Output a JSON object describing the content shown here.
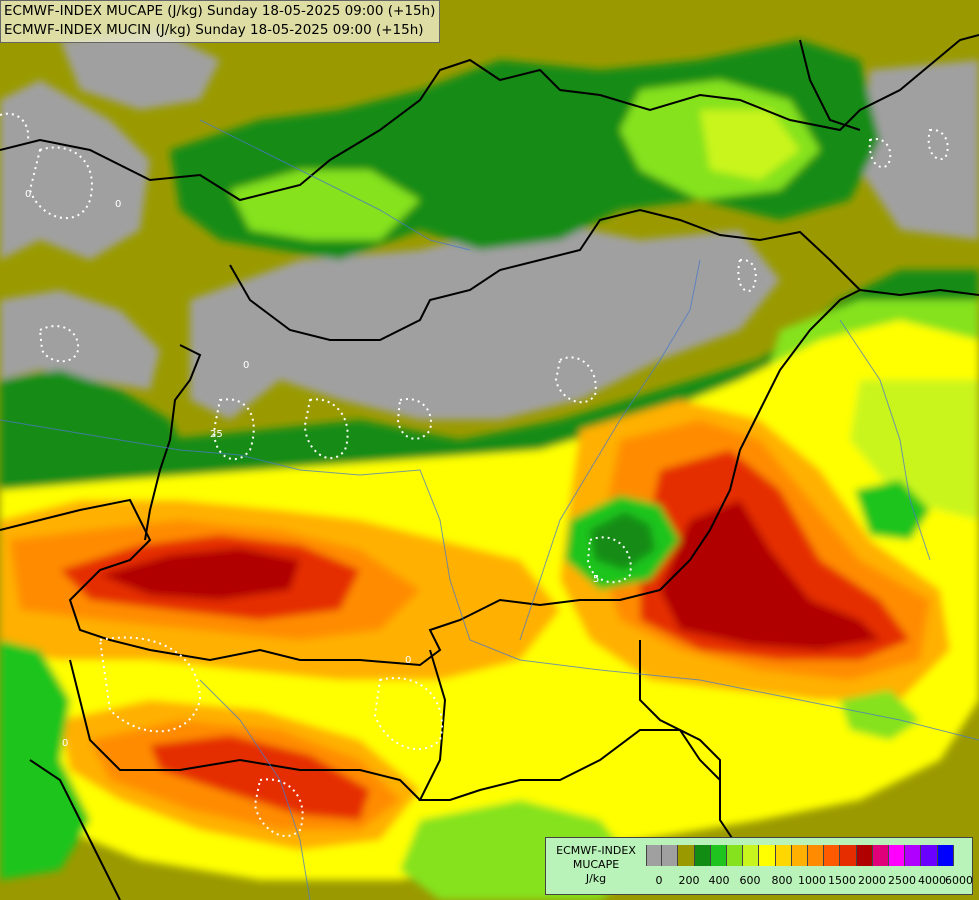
{
  "header": {
    "line1": "ECMWF-INDEX MUCAPE (J/kg) Sunday 18-05-2025 09:00 (+15h)",
    "line2": "ECMWF-INDEX MUCIN (J/kg) Sunday 18-05-2025 09:00 (+15h)"
  },
  "legend": {
    "title_line1": "ECMWF-INDEX",
    "title_line2": "MUCAPE",
    "title_line3": "J/kg",
    "colors": [
      "#a0a0a0",
      "#a0a0a0",
      "#9a9a00",
      "#128c12",
      "#1fc41f",
      "#85e21d",
      "#c9f51e",
      "#ffff00",
      "#ffd700",
      "#ffb000",
      "#ff8c00",
      "#ff5a00",
      "#e52d00",
      "#b00000",
      "#e0007a",
      "#ff00ff",
      "#b000ff",
      "#6a00ff",
      "#0000ff",
      "#0078ff",
      "#00e0ff",
      "#b4ffff",
      "#ffffff"
    ],
    "ticks": [
      "0",
      "200",
      "400",
      "600",
      "800",
      "1000",
      "1500",
      "2000",
      "2500",
      "4000",
      "6000"
    ]
  },
  "map": {
    "cin_labels": [
      "0",
      "0",
      "0",
      "25",
      "0",
      "5",
      "0"
    ]
  }
}
